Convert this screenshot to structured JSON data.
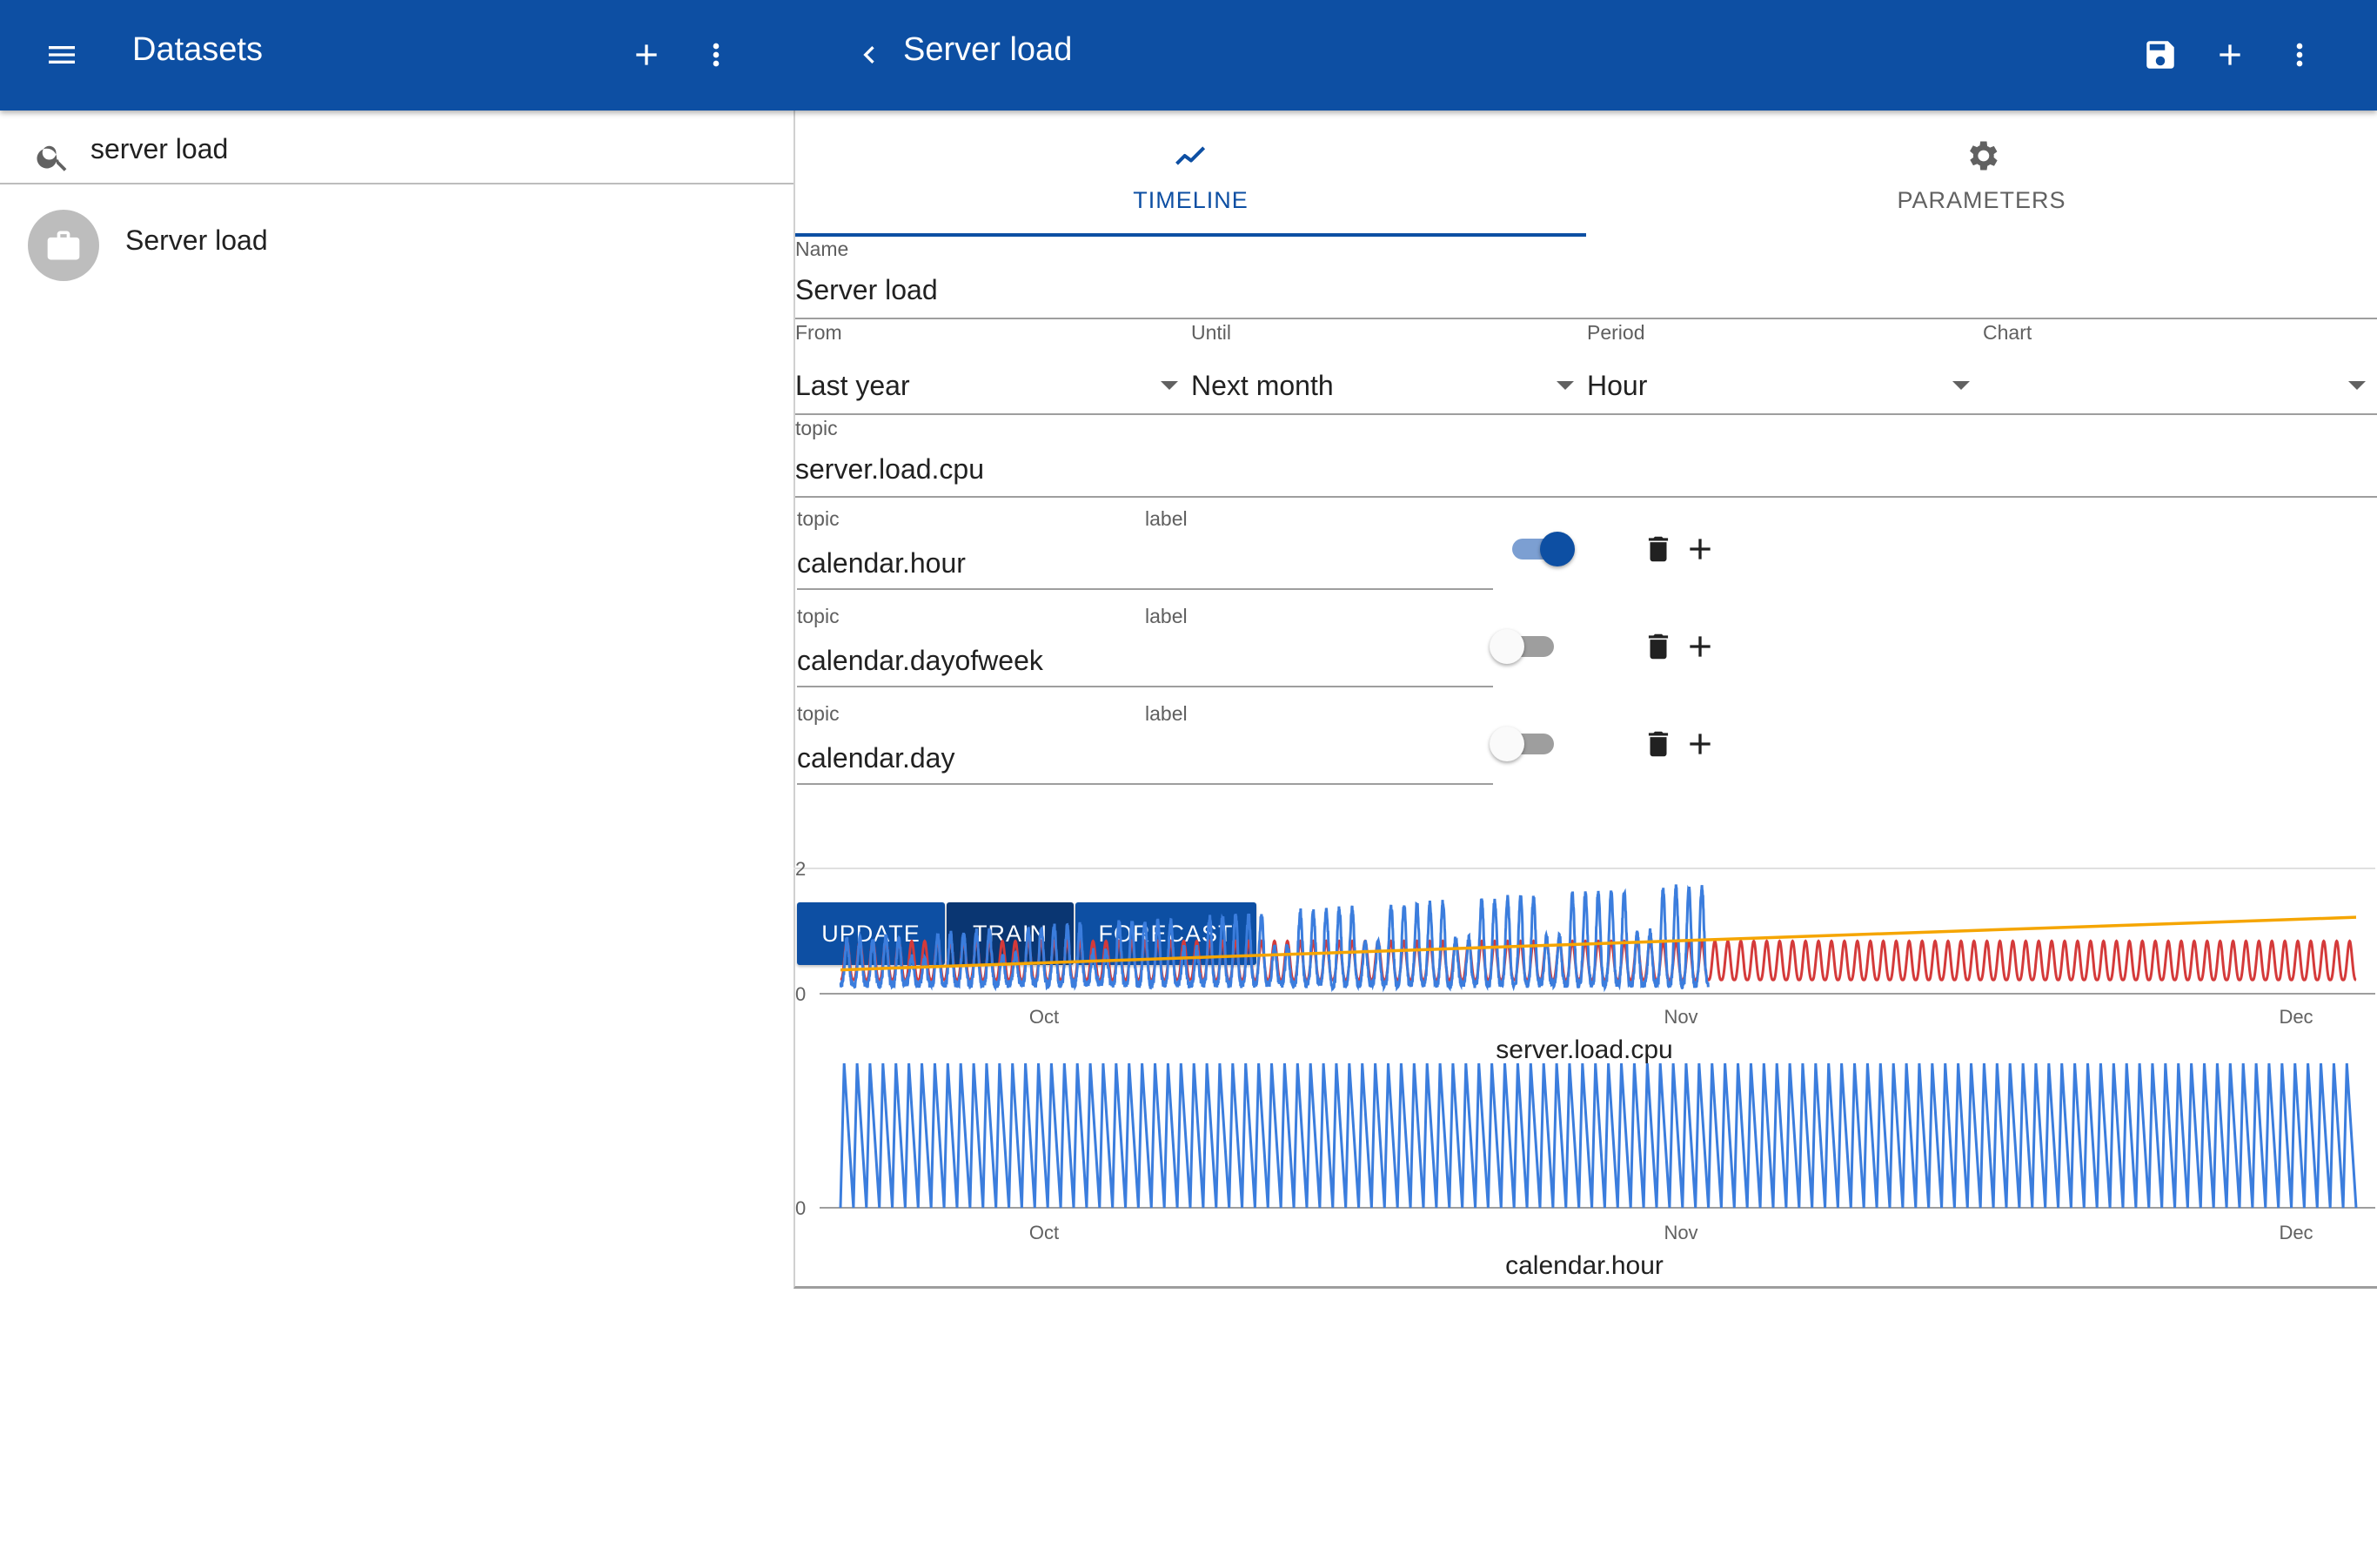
{
  "appbar": {
    "left_title": "Datasets",
    "right_title": "Server load",
    "color": "#0d4fa3",
    "icons": [
      "menu-icon",
      "plus-icon",
      "more-vert-icon",
      "chevron-left-icon",
      "save-icon",
      "plus-icon",
      "more-vert-icon"
    ]
  },
  "search": {
    "value": "server load"
  },
  "datasets": [
    {
      "label": "Server load",
      "icon": "briefcase-icon"
    }
  ],
  "tabs": [
    {
      "label": "TIMELINE",
      "icon": "timeline-icon",
      "active": true
    },
    {
      "label": "PARAMETERS",
      "icon": "gear-icon",
      "active": false
    }
  ],
  "form": {
    "name": {
      "label": "Name",
      "value": "Server load"
    },
    "from": {
      "label": "From",
      "value": "Last year"
    },
    "until": {
      "label": "Until",
      "value": "Next month"
    },
    "period": {
      "label": "Period",
      "value": "Hour"
    },
    "chart": {
      "label": "Chart",
      "value": ""
    },
    "topic": {
      "label": "topic",
      "value": "server.load.cpu"
    }
  },
  "features": [
    {
      "topic_label": "topic",
      "label_label": "label",
      "topic": "calendar.hour",
      "label": "",
      "enabled": true
    },
    {
      "topic_label": "topic",
      "label_label": "label",
      "topic": "calendar.dayofweek",
      "label": "",
      "enabled": false
    },
    {
      "topic_label": "topic",
      "label_label": "label",
      "topic": "calendar.day",
      "label": "",
      "enabled": false
    }
  ],
  "actions": {
    "update": "UPDATE",
    "train": "TRAIN",
    "forecast": "FORECAST"
  },
  "chart_data": [
    {
      "type": "line",
      "title": "server.load.cpu",
      "x_ticks": [
        "Oct",
        "Nov",
        "Dec"
      ],
      "y_ticks": [
        "0",
        "2"
      ],
      "ylim": [
        0,
        2
      ],
      "grid": false,
      "series": [
        {
          "color": "#3b7ddd",
          "period_days": 1,
          "start_day": 0,
          "end_day": 67,
          "base": 0.2,
          "amplitude": 0.7,
          "amplitude_growth_per_day": 0.013
        },
        {
          "color": "#d43a3a",
          "period_days": 1,
          "start_day": 0,
          "end_day": 117,
          "base": 0.22,
          "amplitude": 0.62
        },
        {
          "color": "#f5a500",
          "points": [
            [
              0,
              0.38
            ],
            [
              117,
              1.22
            ]
          ]
        }
      ],
      "x_range_days": [
        0,
        117
      ],
      "tick_days": [
        16,
        65,
        112
      ]
    },
    {
      "type": "line",
      "title": "calendar.hour",
      "x_ticks": [
        "Oct",
        "Nov",
        "Dec"
      ],
      "y_ticks": [
        "0"
      ],
      "series": [
        {
          "color": "#3b7ddd",
          "period_days": 1,
          "start_day": 0,
          "end_day": 117,
          "min": 0,
          "max": 23,
          "shape": "sawtooth"
        }
      ],
      "x_range_days": [
        0,
        117
      ],
      "tick_days": [
        16,
        65,
        112
      ]
    }
  ]
}
